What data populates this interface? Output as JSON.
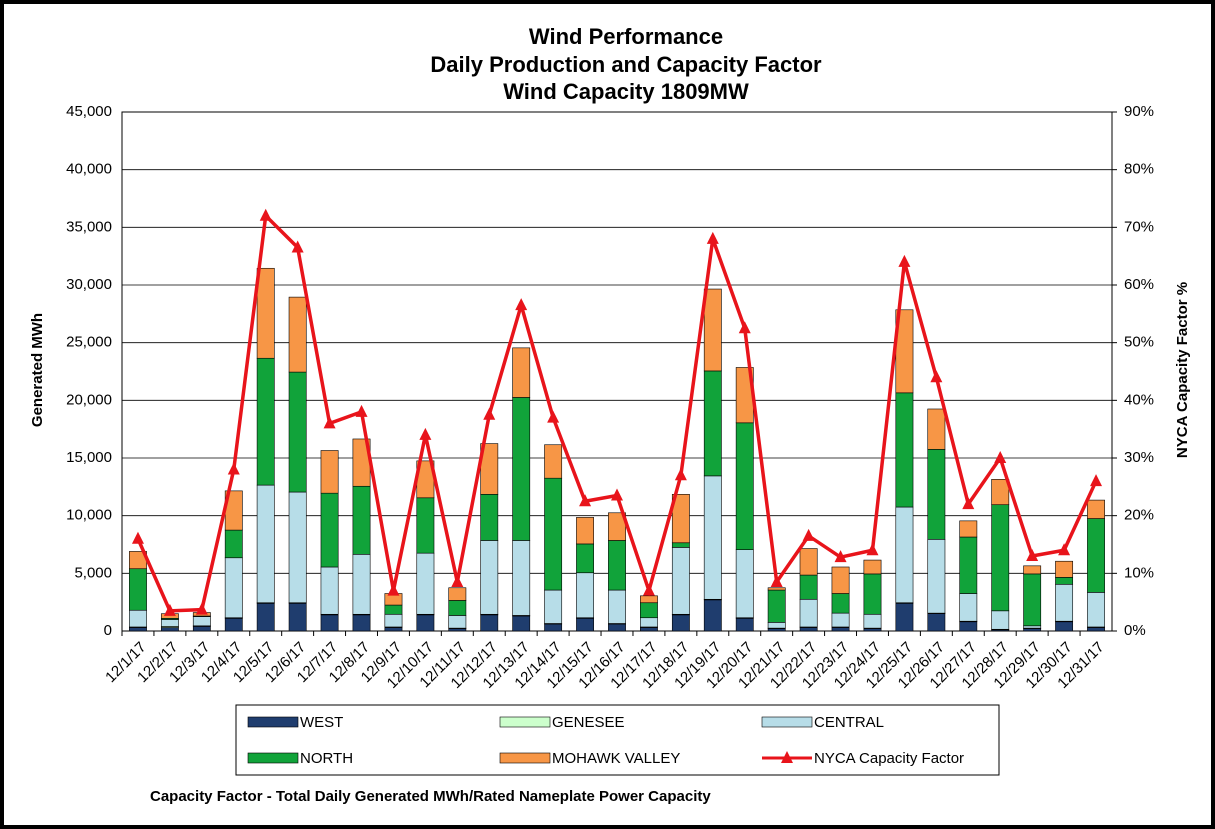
{
  "chart_data": {
    "type": "stacked-bar-line",
    "title": [
      "Wind Performance",
      "Daily Production and Capacity Factor",
      "Wind Capacity 1809MW"
    ],
    "y_label": "Generated  MWh",
    "y2_label": "NYCA Capacity  Factor %",
    "note": "Capacity Factor  - Total Daily Generated MWh/Rated Nameplate Power Capacity",
    "categories": [
      "12/1/17",
      "12/2/17",
      "12/3/17",
      "12/4/17",
      "12/5/17",
      "12/6/17",
      "12/7/17",
      "12/8/17",
      "12/9/17",
      "12/10/17",
      "12/11/17",
      "12/12/17",
      "12/13/17",
      "12/14/17",
      "12/15/17",
      "12/16/17",
      "12/17/17",
      "12/18/17",
      "12/19/17",
      "12/20/17",
      "12/21/17",
      "12/22/17",
      "12/23/17",
      "12/24/17",
      "12/25/17",
      "12/26/17",
      "12/27/17",
      "12/28/17",
      "12/29/17",
      "12/30/17",
      "12/31/17"
    ],
    "series": [
      {
        "name": "WEST",
        "color": "#1f3d6e",
        "values": [
          300,
          300,
          400,
          1100,
          2400,
          2400,
          1400,
          1400,
          300,
          1400,
          200,
          1400,
          1300,
          600,
          1100,
          600,
          300,
          1400,
          2700,
          1100,
          200,
          300,
          300,
          200,
          2400,
          1500,
          800,
          100,
          200,
          800,
          300
        ]
      },
      {
        "name": "GENESEE",
        "color": "#ccffcc",
        "values": [
          50,
          100,
          50,
          50,
          50,
          50,
          50,
          50,
          50,
          50,
          50,
          50,
          50,
          50,
          50,
          50,
          50,
          50,
          50,
          50,
          50,
          50,
          50,
          50,
          50,
          50,
          50,
          50,
          50,
          50,
          50
        ]
      },
      {
        "name": "CENTRAL",
        "color": "#b7dde8",
        "values": [
          1450,
          600,
          800,
          5200,
          10200,
          9600,
          4100,
          5200,
          1100,
          5300,
          1100,
          6400,
          6500,
          2900,
          3900,
          2900,
          800,
          5800,
          10700,
          5900,
          500,
          2400,
          1200,
          1200,
          8300,
          6400,
          2400,
          1600,
          200,
          3200,
          3000
        ]
      },
      {
        "name": "NORTH",
        "color": "#11a33a",
        "values": [
          3600,
          100,
          50,
          2400,
          11000,
          10400,
          6400,
          5900,
          800,
          4800,
          1300,
          4000,
          12400,
          9700,
          2500,
          4300,
          1300,
          400,
          9100,
          11000,
          2800,
          2100,
          1700,
          3500,
          9900,
          7800,
          4900,
          9200,
          4500,
          600,
          6400
        ]
      },
      {
        "name": "MOHAWK VALLEY",
        "color": "#f79646",
        "values": [
          1500,
          400,
          300,
          3400,
          7800,
          6500,
          3700,
          4100,
          1000,
          3200,
          1100,
          4400,
          4300,
          2900,
          2300,
          2400,
          600,
          4200,
          7100,
          4800,
          200,
          2300,
          2300,
          1200,
          7200,
          3500,
          1400,
          2200,
          700,
          1400,
          1600
        ]
      },
      {
        "name": "NYCA Capacity Factor",
        "color": "#e8141b",
        "axis": "y2",
        "values": [
          16,
          3.5,
          3.7,
          28,
          72,
          66.5,
          36,
          38,
          7,
          34,
          8.5,
          37.5,
          56.5,
          37,
          22.5,
          23.5,
          7,
          27,
          68,
          52.5,
          8.5,
          16.5,
          12.8,
          14,
          64,
          44,
          22,
          30,
          13,
          14,
          26
        ]
      }
    ],
    "ylim": [
      0,
      45000
    ],
    "yticks": [
      0,
      {
        "value": 5000,
        "label": "5,000"
      },
      {
        "value": 10000,
        "label": "10,000"
      },
      {
        "value": 15000,
        "label": "15,000"
      },
      {
        "value": 20000,
        "label": "20,000"
      },
      {
        "value": 25000,
        "label": "25,000"
      },
      {
        "value": 30000,
        "label": "30,000"
      },
      {
        "value": 35000,
        "label": "35,000"
      },
      {
        "value": 40000,
        "label": "40,000"
      },
      {
        "value": 45000,
        "label": "45,000"
      }
    ],
    "y2lim": [
      0,
      90
    ],
    "y2ticks": [
      {
        "value": 0,
        "label": "0%"
      },
      {
        "value": 10,
        "label": "10%"
      },
      {
        "value": 20,
        "label": "20%"
      },
      {
        "value": 30,
        "label": "30%"
      },
      {
        "value": 40,
        "label": "40%"
      },
      {
        "value": 50,
        "label": "50%"
      },
      {
        "value": 60,
        "label": "60%"
      },
      {
        "value": 70,
        "label": "70%"
      },
      {
        "value": 80,
        "label": "80%"
      },
      {
        "value": 90,
        "label": "90%"
      }
    ],
    "grid": true,
    "legend": "bottom"
  }
}
